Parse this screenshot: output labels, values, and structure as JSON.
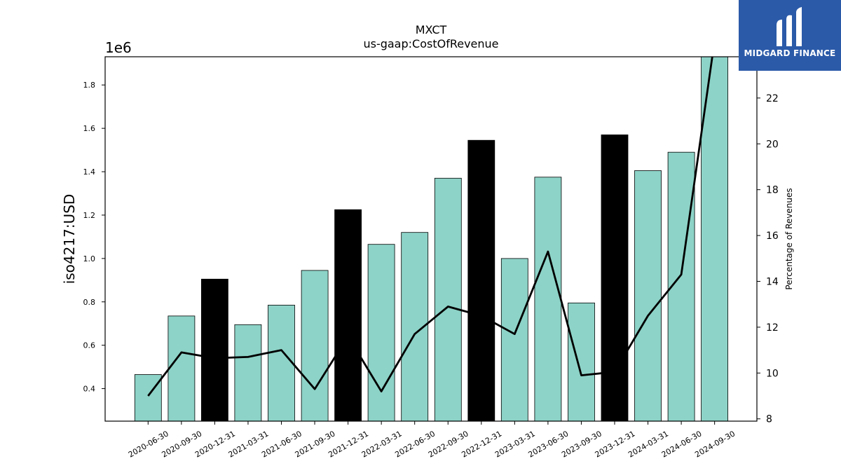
{
  "chart_data": {
    "type": "bar",
    "title": "MXCT",
    "subtitle": "us-gaap:CostOfRevenue",
    "ylabel": "iso4217:USD",
    "y_scale_label": "1e6",
    "y2label": "Percentage of Revenues",
    "ylim": [
      0.25,
      1.93
    ],
    "y2lim": [
      7.9,
      23.8
    ],
    "y_ticks": [
      "0.4",
      "0.6",
      "0.8",
      "1.0",
      "1.2",
      "1.4",
      "1.6",
      "1.8"
    ],
    "y2_ticks": [
      "8",
      "10",
      "12",
      "14",
      "16",
      "18",
      "20",
      "22"
    ],
    "categories": [
      "2020-06-30",
      "2020-09-30",
      "2020-12-31",
      "2021-03-31",
      "2021-06-30",
      "2021-09-30",
      "2021-12-31",
      "2022-03-31",
      "2022-06-30",
      "2022-09-30",
      "2022-12-31",
      "2023-03-31",
      "2023-06-30",
      "2023-09-30",
      "2023-12-31",
      "2024-03-31",
      "2024-06-30",
      "2024-09-30"
    ],
    "series": [
      {
        "values": [
          0.465,
          0.735,
          0.905,
          0.695,
          0.785,
          0.945,
          1.225,
          1.065,
          1.12,
          1.37,
          1.545,
          1.0,
          1.375,
          0.795,
          1.57,
          1.405,
          1.49,
          1.95
        ],
        "highlight": [
          false,
          false,
          true,
          false,
          false,
          false,
          true,
          false,
          false,
          false,
          true,
          false,
          false,
          false,
          true,
          false,
          false,
          false
        ]
      },
      {
        "axis": "right",
        "values": [
          9.0,
          10.9,
          10.65,
          10.7,
          11.0,
          9.3,
          11.6,
          9.2,
          11.7,
          12.9,
          12.5,
          11.7,
          15.3,
          9.9,
          10.05,
          12.5,
          14.3,
          24.5
        ]
      }
    ],
    "colors": {
      "bar": "#8dd3c7",
      "highlight_bar": "#000000",
      "line": "#000000"
    },
    "grid": false
  },
  "branding": {
    "logo_text": "MIDGARD FINANCE"
  }
}
